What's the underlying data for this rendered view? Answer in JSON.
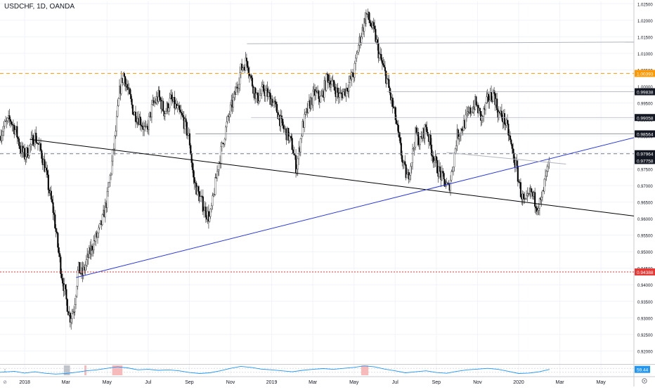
{
  "header": {
    "symbol": "USDCHF, 1D, OANDA"
  },
  "colors": {
    "bull": "#ffffff",
    "bear": "#000000",
    "wick": "#3a3a3a",
    "grid": "#f0f3fa",
    "orange": "#ff9800",
    "red": "#e53935",
    "blue": "#2a39d6",
    "black": "#000000",
    "gray_line": "#9598a1",
    "osc": "#2196f3"
  },
  "chart_data": {
    "type": "candlestick",
    "x_axis_labels": [
      "2018",
      "Mar",
      "May",
      "Jul",
      "Sep",
      "Nov",
      "2019",
      "Mar",
      "May",
      "Jul",
      "Sep",
      "Nov",
      "2020",
      "Mar",
      "May"
    ],
    "x_axis_months": [
      0,
      2,
      4,
      6,
      8,
      10,
      12,
      14,
      16,
      18,
      20,
      22,
      24,
      26,
      28
    ],
    "x_range_months": [
      -1.2,
      29.6
    ],
    "y_range": [
      0.91625,
      1.0257
    ],
    "y_ticks": [
      0.92,
      0.925,
      0.93,
      0.935,
      0.94,
      0.945,
      0.95,
      0.955,
      0.96,
      0.965,
      0.97,
      0.975,
      0.98,
      0.985,
      0.99,
      0.995,
      1.0,
      1.005,
      1.01,
      1.015,
      1.02,
      1.025
    ],
    "y_tick_labels": [
      "0.92000",
      "0.92500",
      "0.93000",
      "0.93500",
      "0.94000",
      "0.94500",
      "0.95000",
      "0.95500",
      "0.96000",
      "0.96500",
      "0.97000",
      "0.97500",
      "0.98000",
      "0.98500",
      "0.99000",
      "0.99500",
      "1.00000",
      "1.00500",
      "1.01000",
      "1.01500",
      "1.02000",
      "1.02500"
    ],
    "price_path": [
      [
        -1.2,
        0.985
      ],
      [
        -1.0,
        0.988
      ],
      [
        -0.7,
        0.99
      ],
      [
        -0.4,
        0.986
      ],
      [
        -0.2,
        0.981
      ],
      [
        0.0,
        0.979
      ],
      [
        0.2,
        0.981
      ],
      [
        0.4,
        0.984
      ],
      [
        0.5,
        0.985
      ],
      [
        0.8,
        0.98
      ],
      [
        1.0,
        0.975
      ],
      [
        1.2,
        0.968
      ],
      [
        1.4,
        0.962
      ],
      [
        1.6,
        0.952
      ],
      [
        1.8,
        0.943
      ],
      [
        2.0,
        0.936
      ],
      [
        2.2,
        0.93
      ],
      [
        2.4,
        0.933
      ],
      [
        2.6,
        0.945
      ],
      [
        2.8,
        0.943
      ],
      [
        3.0,
        0.947
      ],
      [
        3.3,
        0.952
      ],
      [
        3.6,
        0.956
      ],
      [
        3.8,
        0.96
      ],
      [
        4.0,
        0.966
      ],
      [
        4.2,
        0.975
      ],
      [
        4.4,
        0.985
      ],
      [
        4.6,
        0.998
      ],
      [
        4.8,
        1.004
      ],
      [
        5.0,
        0.999
      ],
      [
        5.3,
        0.992
      ],
      [
        5.6,
        0.99
      ],
      [
        5.9,
        0.986
      ],
      [
        6.2,
        0.994
      ],
      [
        6.5,
        0.997
      ],
      [
        6.8,
        0.992
      ],
      [
        7.1,
        0.996
      ],
      [
        7.4,
        0.993
      ],
      [
        7.7,
        0.99
      ],
      [
        8.0,
        0.984
      ],
      [
        8.2,
        0.972
      ],
      [
        8.4,
        0.968
      ],
      [
        8.6,
        0.965
      ],
      [
        8.8,
        0.962
      ],
      [
        9.0,
        0.96
      ],
      [
        9.2,
        0.968
      ],
      [
        9.4,
        0.976
      ],
      [
        9.6,
        0.982
      ],
      [
        9.8,
        0.988
      ],
      [
        10.0,
        0.993
      ],
      [
        10.2,
        0.997
      ],
      [
        10.5,
        1.005
      ],
      [
        10.8,
        1.008
      ],
      [
        11.0,
        1.002
      ],
      [
        11.3,
        0.996
      ],
      [
        11.6,
        0.999
      ],
      [
        12.0,
        0.996
      ],
      [
        12.3,
        0.992
      ],
      [
        12.5,
        0.988
      ],
      [
        12.8,
        0.985
      ],
      [
        13.0,
        0.982
      ],
      [
        13.2,
        0.975
      ],
      [
        13.5,
        0.988
      ],
      [
        13.8,
        0.994
      ],
      [
        14.1,
        0.998
      ],
      [
        14.4,
        0.996
      ],
      [
        14.7,
        1.003
      ],
      [
        15.0,
        1.0
      ],
      [
        15.3,
        0.997
      ],
      [
        15.6,
        0.999
      ],
      [
        16.0,
        1.004
      ],
      [
        16.2,
        1.012
      ],
      [
        16.4,
        1.017
      ],
      [
        16.6,
        1.022
      ],
      [
        16.8,
        1.019
      ],
      [
        17.0,
        1.016
      ],
      [
        17.2,
        1.01
      ],
      [
        17.4,
        1.006
      ],
      [
        17.6,
        1.002
      ],
      [
        17.8,
        0.996
      ],
      [
        18.0,
        0.991
      ],
      [
        18.2,
        0.983
      ],
      [
        18.4,
        0.976
      ],
      [
        18.6,
        0.972
      ],
      [
        18.8,
        0.978
      ],
      [
        19.0,
        0.986
      ],
      [
        19.2,
        0.983
      ],
      [
        19.5,
        0.988
      ],
      [
        19.8,
        0.98
      ],
      [
        20.0,
        0.976
      ],
      [
        20.3,
        0.972
      ],
      [
        20.6,
        0.969
      ],
      [
        20.8,
        0.976
      ],
      [
        21.0,
        0.985
      ],
      [
        21.3,
        0.988
      ],
      [
        21.6,
        0.992
      ],
      [
        21.9,
        0.995
      ],
      [
        22.2,
        0.99
      ],
      [
        22.5,
        0.996
      ],
      [
        22.8,
        0.998
      ],
      [
        23.0,
        0.992
      ],
      [
        23.3,
        0.99
      ],
      [
        23.5,
        0.986
      ],
      [
        23.7,
        0.98
      ],
      [
        23.9,
        0.975
      ],
      [
        24.1,
        0.968
      ],
      [
        24.3,
        0.964
      ],
      [
        24.6,
        0.968
      ],
      [
        24.9,
        0.964
      ],
      [
        25.1,
        0.965
      ],
      [
        25.3,
        0.972
      ],
      [
        25.5,
        0.977
      ]
    ],
    "horizontal_levels": [
      {
        "price": 1.00393,
        "label": "1.00393",
        "style": "dashed",
        "color": "#ff9800",
        "x_start": -1.2
      },
      {
        "price": 0.99838,
        "label": "0.99838",
        "style": "solid",
        "color": "#b2b5be",
        "x_start": 17.6
      },
      {
        "price": 0.99058,
        "label": "0.99058",
        "style": "solid",
        "color": "#b2b5be",
        "x_start": 11.0
      },
      {
        "price": 0.98564,
        "label": "0.98564",
        "style": "solid",
        "color": "#787b86",
        "x_start": 8.3
      },
      {
        "price": 0.97964,
        "label": "0.97964",
        "style": "dashed",
        "color": "#787b86",
        "x_start": -1.2
      },
      {
        "price": 0.97758,
        "label": "0.97758",
        "style": "none",
        "color": "#131722",
        "x_start": -1.2
      },
      {
        "price": 0.94388,
        "label": "0.94388",
        "style": "dotted",
        "color": "#e53935",
        "x_start": -1.2
      }
    ],
    "trend_lines": [
      {
        "name": "",
        "color": "#000000",
        "from": [
          0.25,
          0.984
        ],
        "to": [
          29.6,
          0.9608
        ]
      },
      {
        "name": "",
        "color": "#2a39d6",
        "from": [
          2.5,
          0.9422
        ],
        "to": [
          29.6,
          0.9845
        ]
      },
      {
        "name": "",
        "color": "#b2b5be",
        "from": [
          10.8,
          1.0129
        ],
        "to": [
          29.6,
          1.0134
        ]
      },
      {
        "name": "",
        "color": "#b2b5be",
        "from": [
          20.5,
          0.98
        ],
        "to": [
          26.3,
          0.9765
        ]
      }
    ],
    "oscillator": {
      "value_label": "59.44",
      "range": [
        0,
        100
      ],
      "path": [
        [
          -1.2,
          30
        ],
        [
          -0.5,
          40
        ],
        [
          0.0,
          22
        ],
        [
          0.5,
          35
        ],
        [
          1.0,
          20
        ],
        [
          1.5,
          12
        ],
        [
          2.0,
          18
        ],
        [
          2.5,
          30
        ],
        [
          3.0,
          45
        ],
        [
          3.5,
          55
        ],
        [
          4.0,
          70
        ],
        [
          4.5,
          85
        ],
        [
          5.0,
          75
        ],
        [
          5.5,
          55
        ],
        [
          6.0,
          60
        ],
        [
          6.5,
          50
        ],
        [
          7.0,
          55
        ],
        [
          7.5,
          45
        ],
        [
          8.0,
          28
        ],
        [
          8.5,
          18
        ],
        [
          9.0,
          25
        ],
        [
          9.5,
          45
        ],
        [
          10.0,
          70
        ],
        [
          10.5,
          90
        ],
        [
          11.0,
          80
        ],
        [
          11.5,
          62
        ],
        [
          12.0,
          55
        ],
        [
          12.5,
          45
        ],
        [
          13.0,
          35
        ],
        [
          13.5,
          50
        ],
        [
          14.0,
          60
        ],
        [
          14.5,
          68
        ],
        [
          15.0,
          60
        ],
        [
          15.5,
          70
        ],
        [
          16.0,
          80
        ],
        [
          16.5,
          95
        ],
        [
          17.0,
          85
        ],
        [
          17.5,
          62
        ],
        [
          18.0,
          45
        ],
        [
          18.5,
          25
        ],
        [
          19.0,
          35
        ],
        [
          19.5,
          45
        ],
        [
          20.0,
          28
        ],
        [
          20.5,
          20
        ],
        [
          21.0,
          40
        ],
        [
          21.5,
          55
        ],
        [
          22.0,
          62
        ],
        [
          22.5,
          70
        ],
        [
          23.0,
          60
        ],
        [
          23.5,
          40
        ],
        [
          24.0,
          18
        ],
        [
          24.5,
          22
        ],
        [
          25.0,
          35
        ],
        [
          25.5,
          59
        ]
      ],
      "shaded_regions": [
        {
          "from": 1.9,
          "to": 2.2,
          "color": "#b2b5be"
        },
        {
          "from": 2.9,
          "to": 3.0,
          "color": "#f7a8a8"
        },
        {
          "from": 4.25,
          "to": 4.75,
          "color": "#f7a8a8"
        },
        {
          "from": 16.35,
          "to": 16.7,
          "color": "#f7a8a8"
        }
      ]
    }
  }
}
